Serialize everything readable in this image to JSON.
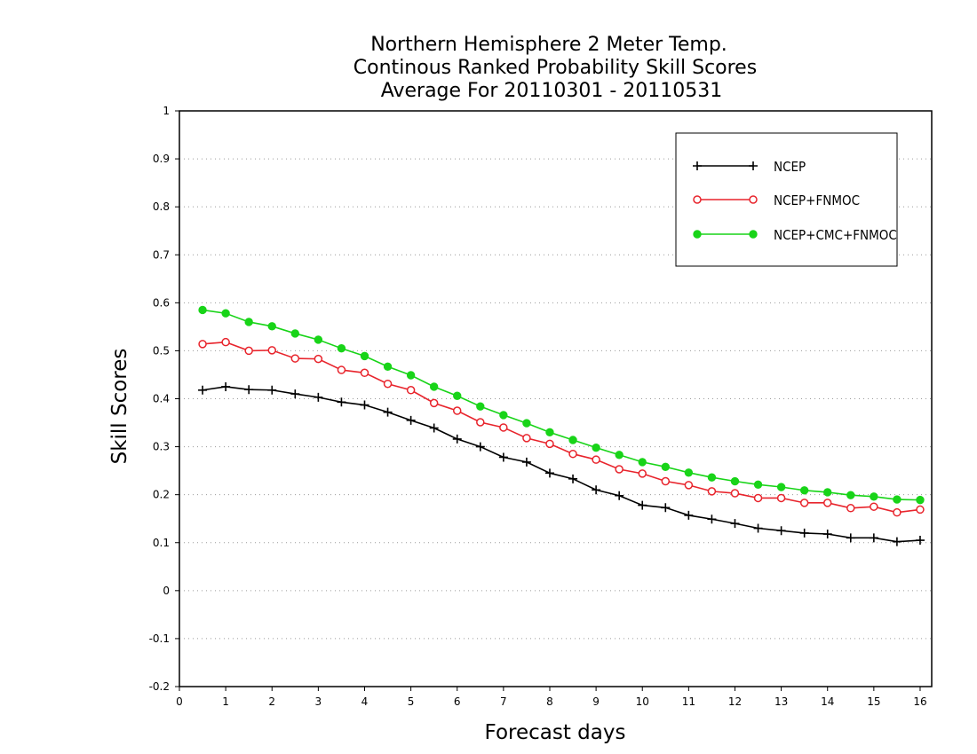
{
  "chart_data": {
    "type": "line",
    "title": [
      "Northern Hemisphere 2 Meter Temp.",
      "Continous Ranked Probability Skill Scores",
      "Average For 20110301 - 20110531"
    ],
    "xlabel": "Forecast days",
    "ylabel": "Skill Scores",
    "xlim": [
      0,
      16.25
    ],
    "ylim": [
      -0.2,
      1
    ],
    "xticks": [
      0,
      1,
      2,
      3,
      4,
      5,
      6,
      7,
      8,
      9,
      10,
      11,
      12,
      13,
      14,
      15,
      16
    ],
    "xtick_labels": [
      "0",
      "1",
      "2",
      "3",
      "4",
      "5",
      "6",
      "7",
      "8",
      "9",
      "10",
      "11",
      "12",
      "13",
      "14",
      "15",
      "16"
    ],
    "yticks": [
      -0.2,
      -0.1,
      0,
      0.1,
      0.2,
      0.3,
      0.4,
      0.5,
      0.6,
      0.7,
      0.8,
      0.9,
      1
    ],
    "ytick_labels": [
      "-0.2",
      "-0.1",
      "0",
      "0.1",
      "0.2",
      "0.3",
      "0.4",
      "0.5",
      "0.6",
      "0.7",
      "0.8",
      "0.9",
      "1"
    ],
    "grid": "horizontal-dotted",
    "legend_position": "top-right",
    "x": [
      0.5,
      1,
      1.5,
      2,
      2.5,
      3,
      3.5,
      4,
      4.5,
      5,
      5.5,
      6,
      6.5,
      7,
      7.5,
      8,
      8.5,
      9,
      9.5,
      10,
      10.5,
      11,
      11.5,
      12,
      12.5,
      13,
      13.5,
      14,
      14.5,
      15,
      15.5,
      16
    ],
    "series": [
      {
        "name": "NCEP",
        "color": "#000000",
        "marker": "plus",
        "values": [
          0.418,
          0.425,
          0.419,
          0.418,
          0.41,
          0.403,
          0.393,
          0.387,
          0.372,
          0.355,
          0.339,
          0.316,
          0.3,
          0.278,
          0.268,
          0.245,
          0.233,
          0.21,
          0.198,
          0.178,
          0.173,
          0.157,
          0.149,
          0.14,
          0.13,
          0.125,
          0.12,
          0.118,
          0.11,
          0.11,
          0.102,
          0.105
        ]
      },
      {
        "name": "NCEP+FNMOC",
        "color": "#e8242c",
        "marker": "open-circle",
        "values": [
          0.514,
          0.518,
          0.5,
          0.501,
          0.484,
          0.483,
          0.46,
          0.454,
          0.431,
          0.418,
          0.391,
          0.375,
          0.351,
          0.34,
          0.318,
          0.306,
          0.285,
          0.273,
          0.253,
          0.244,
          0.228,
          0.22,
          0.207,
          0.203,
          0.193,
          0.193,
          0.183,
          0.183,
          0.172,
          0.175,
          0.163,
          0.169
        ]
      },
      {
        "name": "NCEP+CMC+FNMOC",
        "color": "#18d418",
        "marker": "filled-circle",
        "values": [
          0.585,
          0.578,
          0.56,
          0.551,
          0.536,
          0.523,
          0.505,
          0.489,
          0.467,
          0.449,
          0.425,
          0.406,
          0.384,
          0.366,
          0.349,
          0.33,
          0.314,
          0.298,
          0.283,
          0.268,
          0.258,
          0.246,
          0.236,
          0.228,
          0.221,
          0.216,
          0.209,
          0.205,
          0.199,
          0.196,
          0.19,
          0.189
        ]
      }
    ]
  }
}
